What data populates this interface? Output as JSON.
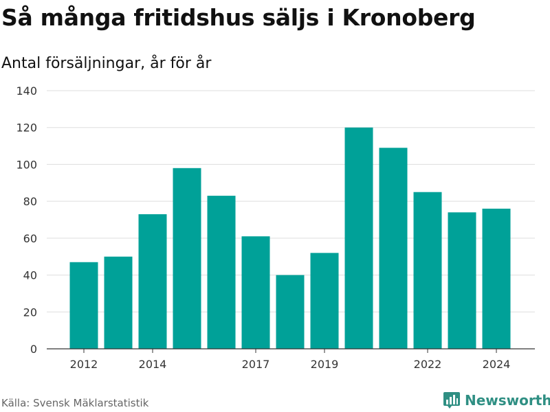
{
  "title": "Så många fritidshus säljs i Kronoberg",
  "subtitle": "Antal försäljningar, år för år",
  "source": "Källa: Svensk Mäklarstatistik",
  "brand": {
    "name": "Newsworthy",
    "icon": "bar-chart-logo-icon",
    "color": "#2f8f83"
  },
  "chart_data": {
    "type": "bar",
    "categories": [
      "2012",
      "2013",
      "2014",
      "2015",
      "2016",
      "2017",
      "2018",
      "2019",
      "2020",
      "2021",
      "2022",
      "2023",
      "2024"
    ],
    "values": [
      47,
      50,
      73,
      98,
      83,
      61,
      40,
      52,
      120,
      109,
      85,
      74,
      76
    ],
    "x_tick_labels": [
      "2012",
      "2014",
      "2017",
      "2019",
      "2022",
      "2024"
    ],
    "y_ticks": [
      0,
      20,
      40,
      60,
      80,
      100,
      120,
      140
    ],
    "ylim": [
      0,
      140
    ],
    "grid": true,
    "bar_color": "#00a198"
  }
}
